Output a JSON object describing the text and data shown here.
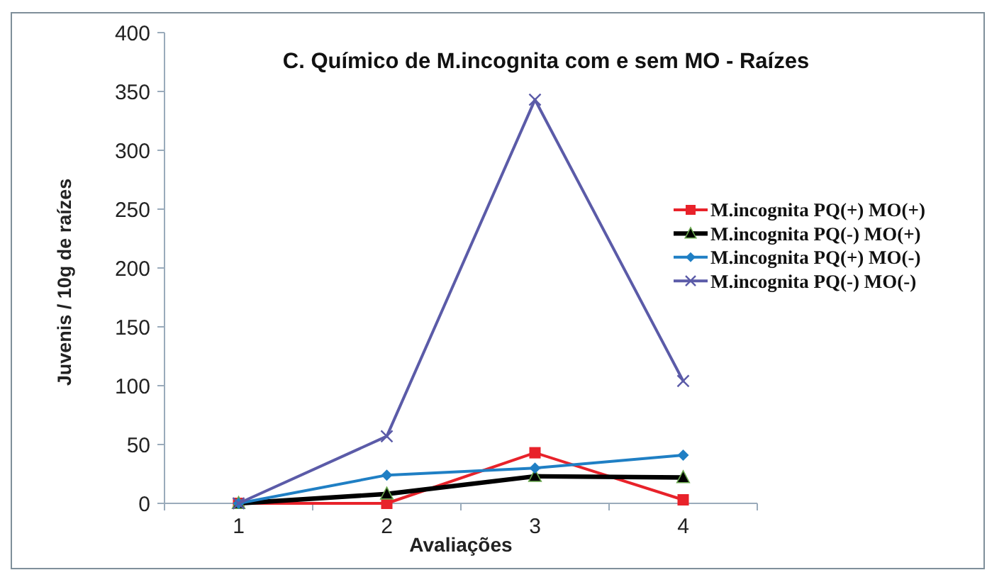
{
  "chart_data": {
    "type": "line",
    "title": "C. Químico de M.incognita com e sem MO - Raízes",
    "xlabel": "Avaliações",
    "ylabel": "Juvenis / 10g de raízes",
    "categories": [
      "1",
      "2",
      "3",
      "4"
    ],
    "series": [
      {
        "name": "M.incognita PQ(+) MO(+)",
        "color": "#e8222a",
        "marker": "square",
        "values": [
          0,
          0,
          43,
          3
        ]
      },
      {
        "name": "M.incognita PQ(-) MO(+)",
        "color": "#000000",
        "marker": "triangle",
        "values": [
          0,
          8,
          23,
          22
        ]
      },
      {
        "name": "M.incognita PQ(+) MO(-)",
        "color": "#1f7fc4",
        "marker": "diamond",
        "values": [
          0,
          24,
          30,
          41
        ]
      },
      {
        "name": "M.incognita PQ(-) MO(-)",
        "color": "#5b5ba8",
        "marker": "cross",
        "values": [
          0,
          57,
          343,
          104
        ]
      }
    ],
    "ylim": [
      0,
      400
    ],
    "yticks": [
      0,
      50,
      100,
      150,
      200,
      250,
      300,
      350,
      400
    ],
    "grid": false,
    "legend": "right",
    "line_style": "solid"
  }
}
